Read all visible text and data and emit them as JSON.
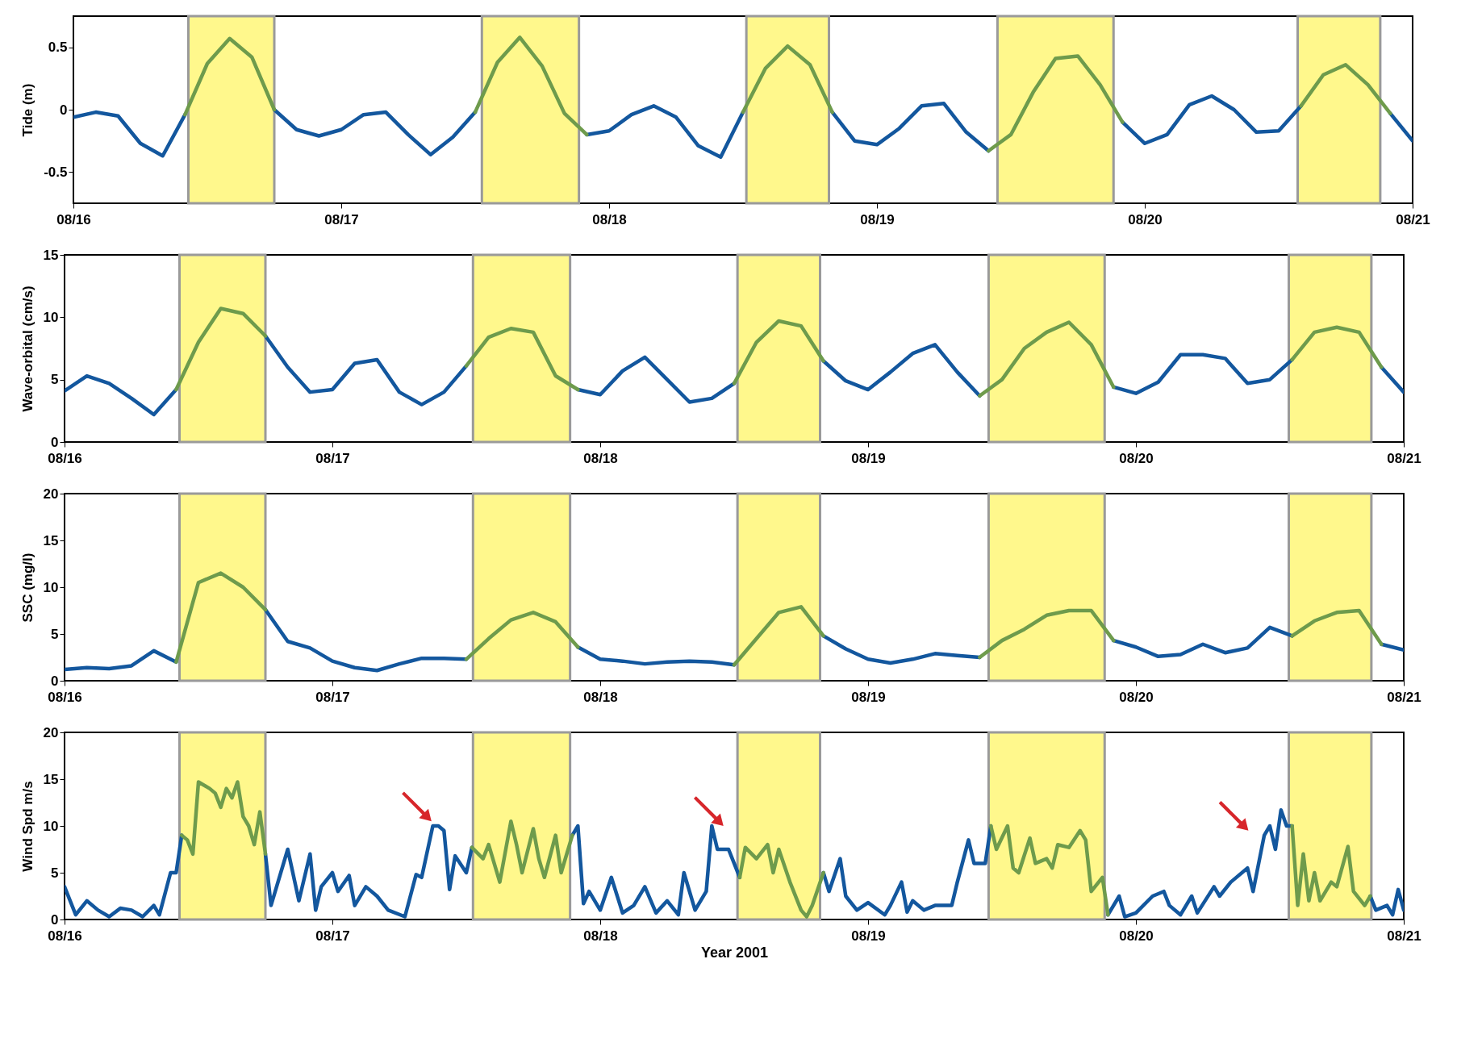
{
  "chart_data": [
    {
      "type": "line",
      "ylabel": "Tide (m)",
      "ylim": [
        -0.75,
        0.75
      ],
      "yticks": [
        -0.5,
        0,
        0.5
      ],
      "xlim": [
        "2001-08-16",
        "2001-08-21"
      ],
      "xticks": [
        {
          "value": "2001-08-16",
          "label": "08/16"
        },
        {
          "value": "2001-08-17",
          "label": "08/17"
        },
        {
          "value": "2001-08-18",
          "label": "08/18"
        },
        {
          "value": "2001-08-19",
          "label": "08/19"
        },
        {
          "value": "2001-08-20",
          "label": "08/20"
        },
        {
          "value": "2001-08-21",
          "label": "08/21"
        }
      ],
      "bands": [
        {
          "axis": "x",
          "from": "2001-08-16T10:18",
          "to": "2001-08-16T18:00",
          "color": "#fff88c"
        },
        {
          "axis": "x",
          "from": "2001-08-17T12:36",
          "to": "2001-08-17T21:18",
          "color": "#fff88c"
        },
        {
          "axis": "x",
          "from": "2001-08-18T12:18",
          "to": "2001-08-18T19:42",
          "color": "#fff88c"
        },
        {
          "axis": "x",
          "from": "2001-08-19T10:48",
          "to": "2001-08-19T21:12",
          "color": "#fff88c"
        },
        {
          "axis": "x",
          "from": "2001-08-20T13:42",
          "to": "2001-08-20T21:06",
          "color": "#fff88c"
        }
      ],
      "x": [
        "2001-08-16T00:00",
        "2001-08-16T02:00",
        "2001-08-16T04:00",
        "2001-08-16T06:00",
        "2001-08-16T08:00",
        "2001-08-16T10:00",
        "2001-08-16T12:00",
        "2001-08-16T14:00",
        "2001-08-16T16:00",
        "2001-08-16T18:00",
        "2001-08-16T20:00",
        "2001-08-16T22:00",
        "2001-08-17T00:00",
        "2001-08-17T02:00",
        "2001-08-17T04:00",
        "2001-08-17T06:00",
        "2001-08-17T08:00",
        "2001-08-17T10:00",
        "2001-08-17T12:00",
        "2001-08-17T14:00",
        "2001-08-17T16:00",
        "2001-08-17T18:00",
        "2001-08-17T20:00",
        "2001-08-17T22:00",
        "2001-08-18T00:00",
        "2001-08-18T02:00",
        "2001-08-18T04:00",
        "2001-08-18T06:00",
        "2001-08-18T08:00",
        "2001-08-18T10:00",
        "2001-08-18T12:00",
        "2001-08-18T14:00",
        "2001-08-18T16:00",
        "2001-08-18T18:00",
        "2001-08-18T20:00",
        "2001-08-18T22:00",
        "2001-08-19T00:00",
        "2001-08-19T02:00",
        "2001-08-19T04:00",
        "2001-08-19T06:00",
        "2001-08-19T08:00",
        "2001-08-19T10:00",
        "2001-08-19T12:00",
        "2001-08-19T14:00",
        "2001-08-19T16:00",
        "2001-08-19T18:00",
        "2001-08-19T20:00",
        "2001-08-19T22:00",
        "2001-08-20T00:00",
        "2001-08-20T02:00",
        "2001-08-20T04:00",
        "2001-08-20T06:00",
        "2001-08-20T08:00",
        "2001-08-20T10:00",
        "2001-08-20T12:00",
        "2001-08-20T14:00",
        "2001-08-20T16:00",
        "2001-08-20T18:00",
        "2001-08-20T20:00",
        "2001-08-20T22:00",
        "2001-08-21T00:00"
      ],
      "series": [
        {
          "color": "#13579e",
          "values": [
            -0.06,
            -0.02,
            -0.05,
            -0.27,
            -0.37,
            -0.04,
            null,
            null,
            null,
            0.0,
            -0.16,
            -0.21,
            -0.16,
            -0.04,
            -0.02,
            -0.2,
            -0.36,
            -0.22,
            -0.02,
            null,
            null,
            null,
            null,
            -0.2,
            -0.17,
            -0.04,
            0.03,
            -0.06,
            -0.29,
            -0.38,
            -0.02,
            null,
            null,
            null,
            -0.02,
            -0.25,
            -0.28,
            -0.15,
            0.03,
            0.05,
            -0.18,
            -0.33,
            null,
            null,
            null,
            null,
            null,
            -0.1,
            -0.27,
            -0.2,
            0.04,
            0.11,
            0.0,
            -0.18,
            -0.17,
            0.03,
            null,
            null,
            null,
            -0.03,
            -0.25
          ]
        },
        {
          "color": "#6e9b4c",
          "values": [
            null,
            null,
            null,
            null,
            null,
            -0.04,
            0.37,
            0.57,
            0.42,
            0.0,
            null,
            null,
            null,
            null,
            null,
            null,
            null,
            null,
            -0.02,
            0.38,
            0.58,
            0.35,
            -0.03,
            -0.2,
            null,
            null,
            null,
            null,
            null,
            null,
            -0.02,
            0.33,
            0.51,
            0.36,
            -0.02,
            null,
            null,
            null,
            null,
            null,
            null,
            -0.33,
            -0.2,
            0.14,
            0.41,
            0.43,
            0.2,
            -0.1,
            null,
            null,
            null,
            null,
            null,
            null,
            null,
            0.03,
            0.28,
            0.36,
            0.2,
            -0.03,
            null
          ]
        }
      ]
    },
    {
      "type": "line",
      "ylabel": "Wave-orbital (cm/s)",
      "ylim": [
        0,
        15
      ],
      "yticks": [
        0,
        5,
        10,
        15
      ],
      "xlim": [
        "2001-08-16",
        "2001-08-21"
      ],
      "xticks": [
        {
          "value": "2001-08-16",
          "label": "08/16"
        },
        {
          "value": "2001-08-17",
          "label": "08/17"
        },
        {
          "value": "2001-08-18",
          "label": "08/18"
        },
        {
          "value": "2001-08-19",
          "label": "08/19"
        },
        {
          "value": "2001-08-20",
          "label": "08/20"
        },
        {
          "value": "2001-08-21",
          "label": "08/21"
        }
      ],
      "bands": [
        {
          "axis": "x",
          "from": "2001-08-16T10:18",
          "to": "2001-08-16T18:00",
          "color": "#fff88c"
        },
        {
          "axis": "x",
          "from": "2001-08-17T12:36",
          "to": "2001-08-17T21:18",
          "color": "#fff88c"
        },
        {
          "axis": "x",
          "from": "2001-08-18T12:18",
          "to": "2001-08-18T19:42",
          "color": "#fff88c"
        },
        {
          "axis": "x",
          "from": "2001-08-19T10:48",
          "to": "2001-08-19T21:12",
          "color": "#fff88c"
        },
        {
          "axis": "x",
          "from": "2001-08-20T13:42",
          "to": "2001-08-20T21:06",
          "color": "#fff88c"
        }
      ],
      "x": [
        "2001-08-16T00:00",
        "2001-08-16T02:00",
        "2001-08-16T04:00",
        "2001-08-16T06:00",
        "2001-08-16T08:00",
        "2001-08-16T10:00",
        "2001-08-16T12:00",
        "2001-08-16T14:00",
        "2001-08-16T16:00",
        "2001-08-16T18:00",
        "2001-08-16T20:00",
        "2001-08-16T22:00",
        "2001-08-17T00:00",
        "2001-08-17T02:00",
        "2001-08-17T04:00",
        "2001-08-17T06:00",
        "2001-08-17T08:00",
        "2001-08-17T10:00",
        "2001-08-17T12:00",
        "2001-08-17T14:00",
        "2001-08-17T16:00",
        "2001-08-17T18:00",
        "2001-08-17T20:00",
        "2001-08-17T22:00",
        "2001-08-18T00:00",
        "2001-08-18T02:00",
        "2001-08-18T04:00",
        "2001-08-18T06:00",
        "2001-08-18T08:00",
        "2001-08-18T10:00",
        "2001-08-18T12:00",
        "2001-08-18T14:00",
        "2001-08-18T16:00",
        "2001-08-18T18:00",
        "2001-08-18T20:00",
        "2001-08-18T22:00",
        "2001-08-19T00:00",
        "2001-08-19T02:00",
        "2001-08-19T04:00",
        "2001-08-19T06:00",
        "2001-08-19T08:00",
        "2001-08-19T10:00",
        "2001-08-19T12:00",
        "2001-08-19T14:00",
        "2001-08-19T16:00",
        "2001-08-19T18:00",
        "2001-08-19T20:00",
        "2001-08-19T22:00",
        "2001-08-20T00:00",
        "2001-08-20T02:00",
        "2001-08-20T04:00",
        "2001-08-20T06:00",
        "2001-08-20T08:00",
        "2001-08-20T10:00",
        "2001-08-20T12:00",
        "2001-08-20T14:00",
        "2001-08-20T16:00",
        "2001-08-20T18:00",
        "2001-08-20T20:00",
        "2001-08-20T22:00",
        "2001-08-21T00:00"
      ],
      "series": [
        {
          "color": "#13579e",
          "values": [
            4.1,
            5.3,
            4.7,
            3.5,
            2.2,
            4.2,
            null,
            null,
            null,
            8.5,
            6.0,
            4.0,
            4.2,
            6.3,
            6.6,
            4.0,
            3.0,
            4.0,
            6.1,
            null,
            null,
            null,
            null,
            4.2,
            3.8,
            5.7,
            6.8,
            5.0,
            3.2,
            3.5,
            4.7,
            null,
            null,
            null,
            6.5,
            4.9,
            4.2,
            5.6,
            7.1,
            7.8,
            5.6,
            3.7,
            null,
            null,
            null,
            null,
            null,
            4.4,
            3.9,
            4.8,
            7.0,
            7.0,
            6.7,
            4.7,
            5.0,
            6.6,
            null,
            null,
            null,
            6.0,
            4.0
          ]
        },
        {
          "color": "#6e9b4c",
          "values": [
            null,
            null,
            null,
            null,
            null,
            4.2,
            8.0,
            10.7,
            10.3,
            8.5,
            null,
            null,
            null,
            null,
            null,
            null,
            null,
            null,
            6.1,
            8.4,
            9.1,
            8.8,
            5.3,
            4.2,
            null,
            null,
            null,
            null,
            null,
            null,
            4.7,
            8.0,
            9.7,
            9.3,
            6.5,
            null,
            null,
            null,
            null,
            null,
            null,
            3.7,
            5.0,
            7.5,
            8.8,
            9.6,
            7.8,
            4.4,
            null,
            null,
            null,
            null,
            null,
            null,
            null,
            6.6,
            8.8,
            9.2,
            8.8,
            6.0,
            null
          ]
        }
      ]
    },
    {
      "type": "line",
      "ylabel": "SSC (mg/l)",
      "ylim": [
        0,
        20
      ],
      "yticks": [
        0,
        5,
        10,
        15,
        20
      ],
      "xlim": [
        "2001-08-16",
        "2001-08-21"
      ],
      "xticks": [
        {
          "value": "2001-08-16",
          "label": "08/16"
        },
        {
          "value": "2001-08-17",
          "label": "08/17"
        },
        {
          "value": "2001-08-18",
          "label": "08/18"
        },
        {
          "value": "2001-08-19",
          "label": "08/19"
        },
        {
          "value": "2001-08-20",
          "label": "08/20"
        },
        {
          "value": "2001-08-21",
          "label": "08/21"
        }
      ],
      "bands": [
        {
          "axis": "x",
          "from": "2001-08-16T10:18",
          "to": "2001-08-16T18:00",
          "color": "#fff88c"
        },
        {
          "axis": "x",
          "from": "2001-08-17T12:36",
          "to": "2001-08-17T21:18",
          "color": "#fff88c"
        },
        {
          "axis": "x",
          "from": "2001-08-18T12:18",
          "to": "2001-08-18T19:42",
          "color": "#fff88c"
        },
        {
          "axis": "x",
          "from": "2001-08-19T10:48",
          "to": "2001-08-19T21:12",
          "color": "#fff88c"
        },
        {
          "axis": "x",
          "from": "2001-08-20T13:42",
          "to": "2001-08-20T21:06",
          "color": "#fff88c"
        }
      ],
      "x": [
        "2001-08-16T00:00",
        "2001-08-16T02:00",
        "2001-08-16T04:00",
        "2001-08-16T06:00",
        "2001-08-16T08:00",
        "2001-08-16T10:00",
        "2001-08-16T12:00",
        "2001-08-16T14:00",
        "2001-08-16T16:00",
        "2001-08-16T18:00",
        "2001-08-16T20:00",
        "2001-08-16T22:00",
        "2001-08-17T00:00",
        "2001-08-17T02:00",
        "2001-08-17T04:00",
        "2001-08-17T06:00",
        "2001-08-17T08:00",
        "2001-08-17T10:00",
        "2001-08-17T12:00",
        "2001-08-17T14:00",
        "2001-08-17T16:00",
        "2001-08-17T18:00",
        "2001-08-17T20:00",
        "2001-08-17T22:00",
        "2001-08-18T00:00",
        "2001-08-18T02:00",
        "2001-08-18T04:00",
        "2001-08-18T06:00",
        "2001-08-18T08:00",
        "2001-08-18T10:00",
        "2001-08-18T12:00",
        "2001-08-18T14:00",
        "2001-08-18T16:00",
        "2001-08-18T18:00",
        "2001-08-18T20:00",
        "2001-08-18T22:00",
        "2001-08-19T00:00",
        "2001-08-19T02:00",
        "2001-08-19T04:00",
        "2001-08-19T06:00",
        "2001-08-19T08:00",
        "2001-08-19T10:00",
        "2001-08-19T12:00",
        "2001-08-19T14:00",
        "2001-08-19T16:00",
        "2001-08-19T18:00",
        "2001-08-19T20:00",
        "2001-08-19T22:00",
        "2001-08-20T00:00",
        "2001-08-20T02:00",
        "2001-08-20T04:00",
        "2001-08-20T06:00",
        "2001-08-20T08:00",
        "2001-08-20T10:00",
        "2001-08-20T12:00",
        "2001-08-20T14:00",
        "2001-08-20T16:00",
        "2001-08-20T18:00",
        "2001-08-20T20:00",
        "2001-08-20T22:00",
        "2001-08-21T00:00"
      ],
      "series": [
        {
          "color": "#13579e",
          "values": [
            1.2,
            1.4,
            1.3,
            1.6,
            3.2,
            2.0,
            null,
            null,
            null,
            7.6,
            4.2,
            3.5,
            2.1,
            1.4,
            1.1,
            1.8,
            2.4,
            2.4,
            2.3,
            null,
            null,
            null,
            null,
            3.6,
            2.3,
            2.1,
            1.8,
            2.0,
            2.1,
            2.0,
            1.7,
            null,
            null,
            null,
            4.8,
            3.4,
            2.3,
            1.9,
            2.3,
            2.9,
            2.7,
            2.5,
            null,
            null,
            null,
            null,
            null,
            4.3,
            3.6,
            2.6,
            2.8,
            3.9,
            3.0,
            3.5,
            5.7,
            4.8,
            null,
            null,
            null,
            3.9,
            3.3
          ]
        },
        {
          "color": "#6e9b4c",
          "values": [
            null,
            null,
            null,
            null,
            null,
            2.0,
            10.5,
            11.5,
            10.0,
            7.6,
            null,
            null,
            null,
            null,
            null,
            null,
            null,
            null,
            2.3,
            4.5,
            6.5,
            7.3,
            6.3,
            3.6,
            null,
            null,
            null,
            null,
            null,
            null,
            1.7,
            4.5,
            7.3,
            7.9,
            4.8,
            null,
            null,
            null,
            null,
            null,
            null,
            2.5,
            4.3,
            5.5,
            7.0,
            7.5,
            7.5,
            4.3,
            null,
            null,
            null,
            null,
            null,
            null,
            null,
            4.8,
            6.4,
            7.3,
            7.5,
            3.9,
            null
          ]
        }
      ]
    },
    {
      "type": "line",
      "ylabel": "Wind Spd m/s",
      "xlabel": "Year 2001",
      "ylim": [
        0,
        20
      ],
      "yticks": [
        0,
        5,
        10,
        15,
        20
      ],
      "xlim": [
        "2001-08-16",
        "2001-08-21"
      ],
      "xticks": [
        {
          "value": "2001-08-16",
          "label": "08/16"
        },
        {
          "value": "2001-08-17",
          "label": "08/17"
        },
        {
          "value": "2001-08-18",
          "label": "08/18"
        },
        {
          "value": "2001-08-19",
          "label": "08/19"
        },
        {
          "value": "2001-08-20",
          "label": "08/20"
        },
        {
          "value": "2001-08-21",
          "label": "08/21"
        }
      ],
      "bands": [
        {
          "axis": "x",
          "from": "2001-08-16T10:18",
          "to": "2001-08-16T18:00",
          "color": "#fff88c"
        },
        {
          "axis": "x",
          "from": "2001-08-17T12:36",
          "to": "2001-08-17T21:18",
          "color": "#fff88c"
        },
        {
          "axis": "x",
          "from": "2001-08-18T12:18",
          "to": "2001-08-18T19:42",
          "color": "#fff88c"
        },
        {
          "axis": "x",
          "from": "2001-08-19T10:48",
          "to": "2001-08-19T21:12",
          "color": "#fff88c"
        },
        {
          "axis": "x",
          "from": "2001-08-20T13:42",
          "to": "2001-08-20T21:06",
          "color": "#fff88c"
        }
      ],
      "series": [
        {
          "color": "#13579e",
          "x": [
            "2001-08-16T00:00",
            "2001-08-16T01:00",
            "2001-08-16T02:00",
            "2001-08-16T03:00",
            "2001-08-16T04:00",
            "2001-08-16T05:00",
            "2001-08-16T06:00",
            "2001-08-16T07:00",
            "2001-08-16T08:00",
            "2001-08-16T08:30",
            "2001-08-16T09:30",
            "2001-08-16T10:00",
            "2001-08-16T10:30",
            "2001-08-16T14:00",
            "2001-08-16T18:00",
            "2001-08-16T18:30",
            "2001-08-16T20:00",
            "2001-08-16T21:00",
            "2001-08-16T22:00",
            "2001-08-16T22:30",
            "2001-08-16T23:00",
            "2001-08-17T00:00",
            "2001-08-17T00:30",
            "2001-08-17T01:30",
            "2001-08-17T02:00",
            "2001-08-17T03:00",
            "2001-08-17T04:00",
            "2001-08-17T05:00",
            "2001-08-17T06:30",
            "2001-08-17T07:30",
            "2001-08-17T08:00",
            "2001-08-17T09:00",
            "2001-08-17T09:30",
            "2001-08-17T10:00",
            "2001-08-17T10:30",
            "2001-08-17T11:00",
            "2001-08-17T12:00",
            "2001-08-17T12:30",
            "2001-08-17T17:00",
            "2001-08-17T21:30",
            "2001-08-17T22:00",
            "2001-08-17T22:30",
            "2001-08-17T23:00",
            "2001-08-18T00:00",
            "2001-08-18T01:00",
            "2001-08-18T02:00",
            "2001-08-18T03:00",
            "2001-08-18T04:00",
            "2001-08-18T05:00",
            "2001-08-18T06:00",
            "2001-08-18T07:00",
            "2001-08-18T07:30",
            "2001-08-18T08:30",
            "2001-08-18T09:30",
            "2001-08-18T10:00",
            "2001-08-18T10:30",
            "2001-08-18T11:30",
            "2001-08-18T12:00",
            "2001-08-18T12:30",
            "2001-08-18T16:00",
            "2001-08-18T20:00",
            "2001-08-18T20:30",
            "2001-08-18T21:30",
            "2001-08-18T22:00",
            "2001-08-18T23:00",
            "2001-08-19T00:00",
            "2001-08-19T01:30",
            "2001-08-19T02:00",
            "2001-08-19T03:00",
            "2001-08-19T03:30",
            "2001-08-19T04:00",
            "2001-08-19T05:00",
            "2001-08-19T06:00",
            "2001-08-19T07:30",
            "2001-08-19T08:00",
            "2001-08-19T09:00",
            "2001-08-19T09:30",
            "2001-08-19T10:30",
            "2001-08-19T11:00",
            "2001-08-19T16:00",
            "2001-08-19T21:30",
            "2001-08-19T22:30",
            "2001-08-19T23:00",
            "2001-08-20T00:00",
            "2001-08-20T01:30",
            "2001-08-20T02:30",
            "2001-08-20T03:00",
            "2001-08-20T04:00",
            "2001-08-20T05:00",
            "2001-08-20T05:30",
            "2001-08-20T07:00",
            "2001-08-20T07:30",
            "2001-08-20T08:30",
            "2001-08-20T10:00",
            "2001-08-20T10:30",
            "2001-08-20T11:30",
            "2001-08-20T12:00",
            "2001-08-20T12:30",
            "2001-08-20T13:00",
            "2001-08-20T13:30",
            "2001-08-20T14:00",
            "2001-08-20T17:00",
            "2001-08-20T21:00",
            "2001-08-20T21:30",
            "2001-08-20T22:30",
            "2001-08-20T23:00",
            "2001-08-20T23:30",
            "2001-08-21T00:00"
          ],
          "values": [
            3.5,
            0.5,
            2,
            1,
            0.3,
            1.2,
            1,
            0.3,
            1.5,
            0.5,
            5,
            5,
            9,
            null,
            7,
            1.5,
            7.5,
            2,
            7,
            1,
            3.5,
            5,
            3,
            4.7,
            1.5,
            3.5,
            2.5,
            1,
            0.3,
            4.8,
            4.5,
            10,
            10,
            9.5,
            3.2,
            6.8,
            5,
            7.7,
            null,
            9,
            10,
            1.7,
            3,
            1,
            4.5,
            0.7,
            1.5,
            3.5,
            0.7,
            2,
            0.5,
            5,
            1,
            3,
            10,
            7.5,
            7.5,
            6,
            4.5,
            null,
            5,
            3,
            6.5,
            2.5,
            1,
            1.8,
            0.5,
            1.5,
            4,
            0.8,
            2,
            1,
            1.5,
            1.5,
            4,
            8.5,
            6,
            6,
            10,
            null,
            0.5,
            2.5,
            0.3,
            0.7,
            2.5,
            3,
            1.5,
            0.5,
            2.5,
            0.7,
            3.5,
            2.5,
            4,
            5.5,
            3,
            9,
            10,
            7.5,
            11.7,
            10,
            10,
            null,
            2.5,
            1,
            1.5,
            0.5,
            3.2,
            1
          ]
        },
        {
          "color": "#6e9b4c",
          "x": [
            "2001-08-16T10:30",
            "2001-08-16T11:00",
            "2001-08-16T11:30",
            "2001-08-16T12:00",
            "2001-08-16T13:00",
            "2001-08-16T13:30",
            "2001-08-16T14:00",
            "2001-08-16T14:30",
            "2001-08-16T15:00",
            "2001-08-16T15:30",
            "2001-08-16T16:00",
            "2001-08-16T16:30",
            "2001-08-16T17:00",
            "2001-08-16T17:30",
            "2001-08-16T18:00",
            "2001-08-17T03:00",
            "2001-08-17T12:30",
            "2001-08-17T13:30",
            "2001-08-17T14:00",
            "2001-08-17T15:00",
            "2001-08-17T16:00",
            "2001-08-17T16:30",
            "2001-08-17T17:00",
            "2001-08-17T18:00",
            "2001-08-17T18:30",
            "2001-08-17T19:00",
            "2001-08-17T20:00",
            "2001-08-17T20:30",
            "2001-08-17T21:30",
            "2001-08-18T05:00",
            "2001-08-18T12:30",
            "2001-08-18T13:00",
            "2001-08-18T14:00",
            "2001-08-18T15:00",
            "2001-08-18T15:30",
            "2001-08-18T16:00",
            "2001-08-18T17:00",
            "2001-08-18T18:00",
            "2001-08-18T18:30",
            "2001-08-18T19:00",
            "2001-08-18T20:00",
            "2001-08-19T04:00",
            "2001-08-19T11:00",
            "2001-08-19T11:30",
            "2001-08-19T12:30",
            "2001-08-19T13:00",
            "2001-08-19T13:30",
            "2001-08-19T14:30",
            "2001-08-19T15:00",
            "2001-08-19T16:00",
            "2001-08-19T16:30",
            "2001-08-19T17:00",
            "2001-08-19T18:00",
            "2001-08-19T19:00",
            "2001-08-19T19:30",
            "2001-08-19T20:00",
            "2001-08-19T21:00",
            "2001-08-19T21:30",
            "2001-08-20T04:00",
            "2001-08-20T14:00",
            "2001-08-20T14:30",
            "2001-08-20T15:00",
            "2001-08-20T15:30",
            "2001-08-20T16:00",
            "2001-08-20T16:30",
            "2001-08-20T17:30",
            "2001-08-20T18:00",
            "2001-08-20T19:00",
            "2001-08-20T19:30",
            "2001-08-20T20:30",
            "2001-08-20T21:00"
          ],
          "values": [
            9,
            8.5,
            7,
            14.7,
            14,
            13.5,
            12,
            14,
            13,
            14.7,
            11,
            10,
            8,
            11.5,
            7,
            null,
            7.7,
            6.5,
            8,
            4,
            10.5,
            8,
            5,
            9.7,
            6.5,
            4.5,
            9,
            5,
            9,
            null,
            4.5,
            7.7,
            6.5,
            8,
            5,
            7.5,
            4,
            1,
            0.3,
            1.5,
            5,
            null,
            10,
            7.5,
            10,
            5.5,
            5,
            8.7,
            6,
            6.5,
            5.5,
            8,
            7.7,
            9.5,
            8.5,
            3,
            4.5,
            0.5,
            null,
            10,
            1.5,
            7,
            2,
            5,
            2,
            4,
            3.5,
            7.8,
            3,
            1.5,
            2.5
          ]
        }
      ]
    }
  ]
}
